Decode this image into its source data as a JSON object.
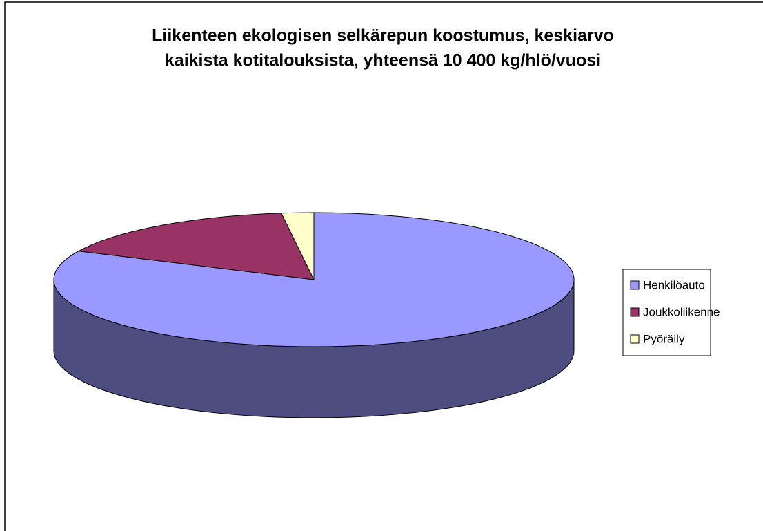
{
  "chart_data": {
    "type": "pie3d",
    "title": [
      "Liikenteen ekologisen selkärepun koostumus, keskiarvo",
      "kaikista kotitalouksista, yhteensä 10 400 kg/hlö/vuosi"
    ],
    "categories": [
      "Henkilöauto",
      "Joukkoliikenne",
      "Pyöräily"
    ],
    "values": [
      82,
      16,
      2
    ],
    "colors": [
      "#9999ff",
      "#993366",
      "#ffffcc"
    ],
    "side_colors": [
      "#4d4d80",
      "#4d1933",
      "#808066"
    ],
    "legend": "right"
  }
}
